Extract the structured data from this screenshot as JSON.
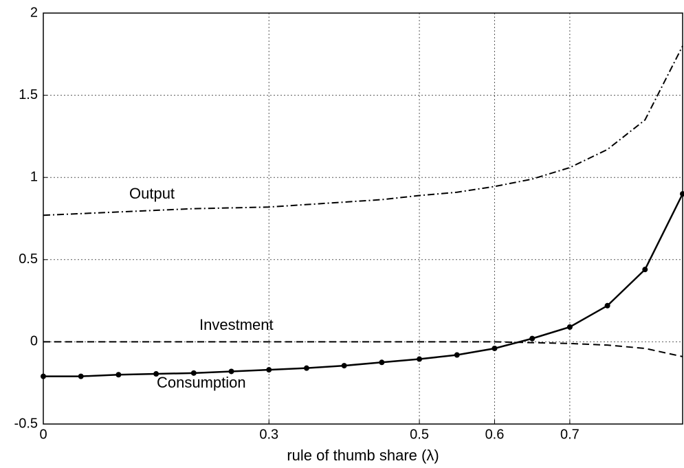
{
  "chart_data": {
    "type": "line",
    "xlabel": "rule of thumb share (λ)",
    "x": [
      0,
      0.05,
      0.1,
      0.15,
      0.2,
      0.25,
      0.3,
      0.35,
      0.4,
      0.45,
      0.5,
      0.55,
      0.6,
      0.65,
      0.7,
      0.75,
      0.8,
      0.85
    ],
    "series": [
      {
        "name": "Output",
        "color": "#000000",
        "line_style": "dashdot",
        "marker": "none",
        "values": [
          0.77,
          0.78,
          0.79,
          0.8,
          0.81,
          0.815,
          0.82,
          0.835,
          0.85,
          0.865,
          0.89,
          0.91,
          0.945,
          0.99,
          1.06,
          1.17,
          1.35,
          1.8
        ]
      },
      {
        "name": "Investment",
        "color": "#000000",
        "line_style": "dashed",
        "marker": "none",
        "values": [
          0,
          0,
          0,
          0,
          0,
          0,
          0,
          0,
          0,
          0,
          0,
          0,
          0,
          -0.005,
          -0.01,
          -0.02,
          -0.04,
          -0.09
        ]
      },
      {
        "name": "Consumption",
        "color": "#000000",
        "line_style": "solid",
        "marker": "dot",
        "values": [
          -0.21,
          -0.21,
          -0.2,
          -0.195,
          -0.19,
          -0.18,
          -0.17,
          -0.16,
          -0.145,
          -0.125,
          -0.105,
          -0.08,
          -0.04,
          0.02,
          0.09,
          0.22,
          0.44,
          0.9
        ]
      }
    ],
    "xlim": [
      0,
      0.85
    ],
    "xticks": [
      0,
      0.3,
      0.5,
      0.6,
      0.7
    ],
    "ylim": [
      -0.5,
      2
    ],
    "yticks": [
      -0.5,
      0,
      0.5,
      1,
      1.5,
      2
    ],
    "grid": true
  }
}
